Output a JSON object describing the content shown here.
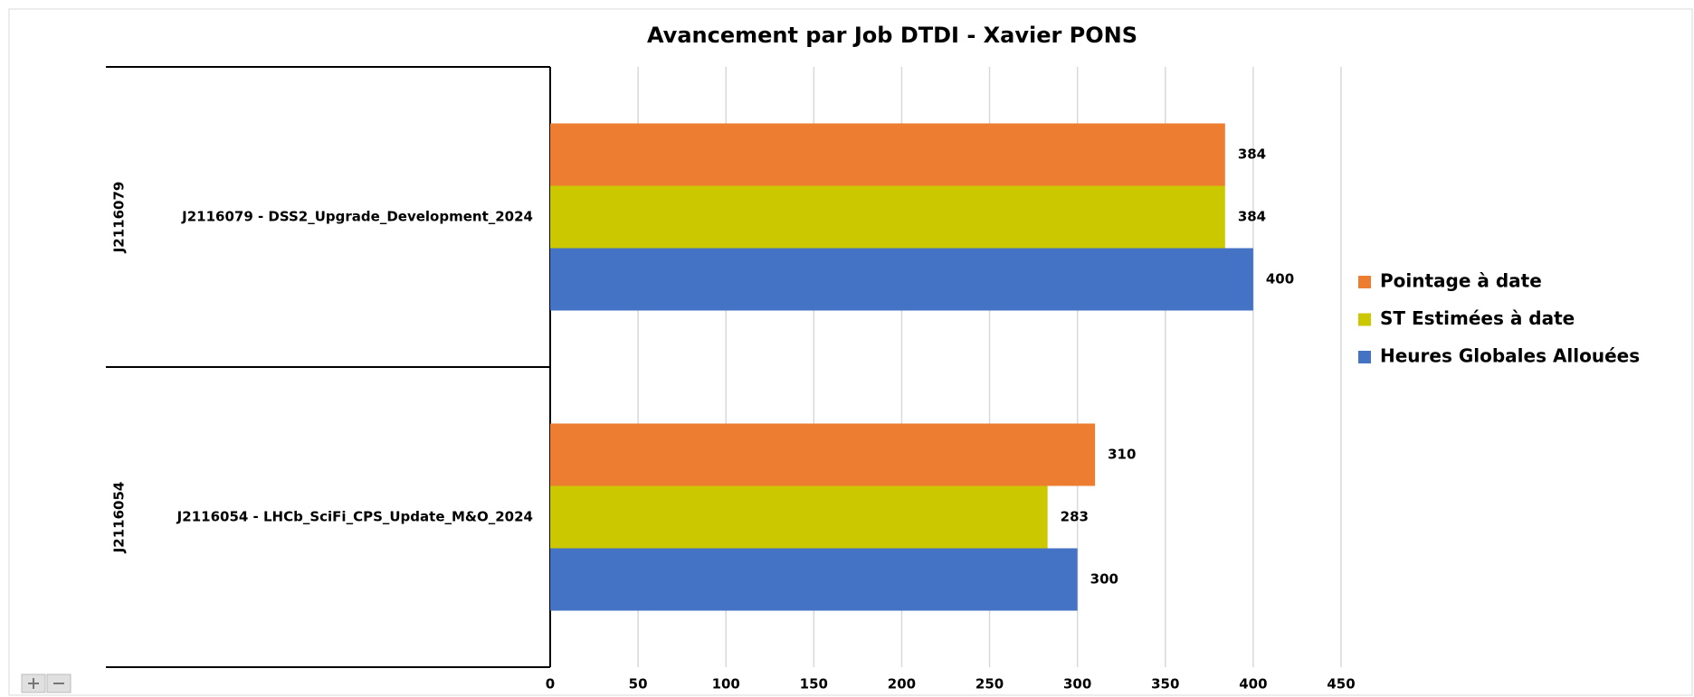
{
  "chart_data": {
    "type": "bar",
    "orientation": "horizontal",
    "title": "Avancement par Job DTDI - Xavier PONS",
    "category_groups": [
      "J2116079",
      "J2116054"
    ],
    "categories": [
      "J2116079 - DSS2_Upgrade_Development_2024",
      "J2116054 - LHCb_SciFi_CPS_Update_M&O_2024"
    ],
    "series": [
      {
        "name": "Pointage à date",
        "color": "#ED7D31",
        "values": [
          384,
          310
        ]
      },
      {
        "name": "ST Estimées à date",
        "color": "#CCC800",
        "values": [
          384,
          283
        ]
      },
      {
        "name": "Heures Globales Allouées",
        "color": "#4472C4",
        "values": [
          400,
          300
        ]
      }
    ],
    "xlim": [
      0,
      450
    ],
    "xticks": [
      0,
      50,
      100,
      150,
      200,
      250,
      300,
      350,
      400,
      450
    ],
    "grid": true,
    "legend": "right"
  }
}
